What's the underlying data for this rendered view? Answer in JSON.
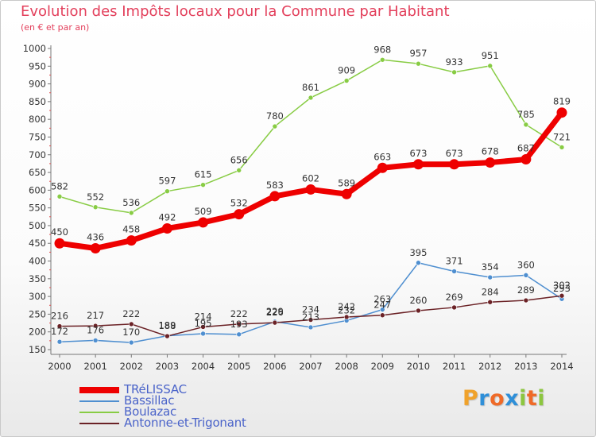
{
  "header": {
    "title": "Evolution des Impôts locaux pour la Commune par Habitant",
    "subtitle": "(en € et par an)"
  },
  "logo": {
    "letters": [
      "P",
      "r",
      "o",
      "x",
      "i",
      "t",
      "i"
    ],
    "colors": [
      "#f0a22b",
      "#2f8fd8",
      "#ef6a28",
      "#2f8fd8",
      "#8cc63f",
      "#ef6a28",
      "#8cc63f"
    ]
  },
  "chart_data": {
    "type": "line",
    "x": [
      2000,
      2001,
      2002,
      2003,
      2004,
      2005,
      2006,
      2007,
      2008,
      2009,
      2010,
      2011,
      2012,
      2013,
      2014
    ],
    "ylim": [
      150,
      1000
    ],
    "yticks": [
      150,
      200,
      250,
      300,
      350,
      400,
      450,
      500,
      550,
      600,
      650,
      700,
      750,
      800,
      850,
      900,
      950,
      1000
    ],
    "grid": false,
    "legend_position": "bottom-left",
    "series": [
      {
        "name": "TRéLISSAC",
        "color": "#ee0000",
        "values": [
          450,
          436,
          458,
          492,
          509,
          532,
          583,
          602,
          589,
          663,
          673,
          673,
          678,
          687,
          819
        ]
      },
      {
        "name": "Bassillac",
        "color": "#4f8fd0",
        "values": [
          172,
          176,
          170,
          189,
          195,
          193,
          229,
          213,
          232,
          263,
          395,
          371,
          354,
          360,
          293
        ]
      },
      {
        "name": "Boulazac",
        "color": "#88cc44",
        "values": [
          582,
          552,
          536,
          597,
          615,
          656,
          780,
          861,
          909,
          968,
          957,
          933,
          951,
          785,
          721
        ]
      },
      {
        "name": "Antonne-et-Trigonant",
        "color": "#6b2226",
        "values": [
          216,
          217,
          222,
          188,
          214,
          222,
          226,
          234,
          242,
          247,
          260,
          269,
          284,
          289,
          302
        ]
      }
    ]
  }
}
